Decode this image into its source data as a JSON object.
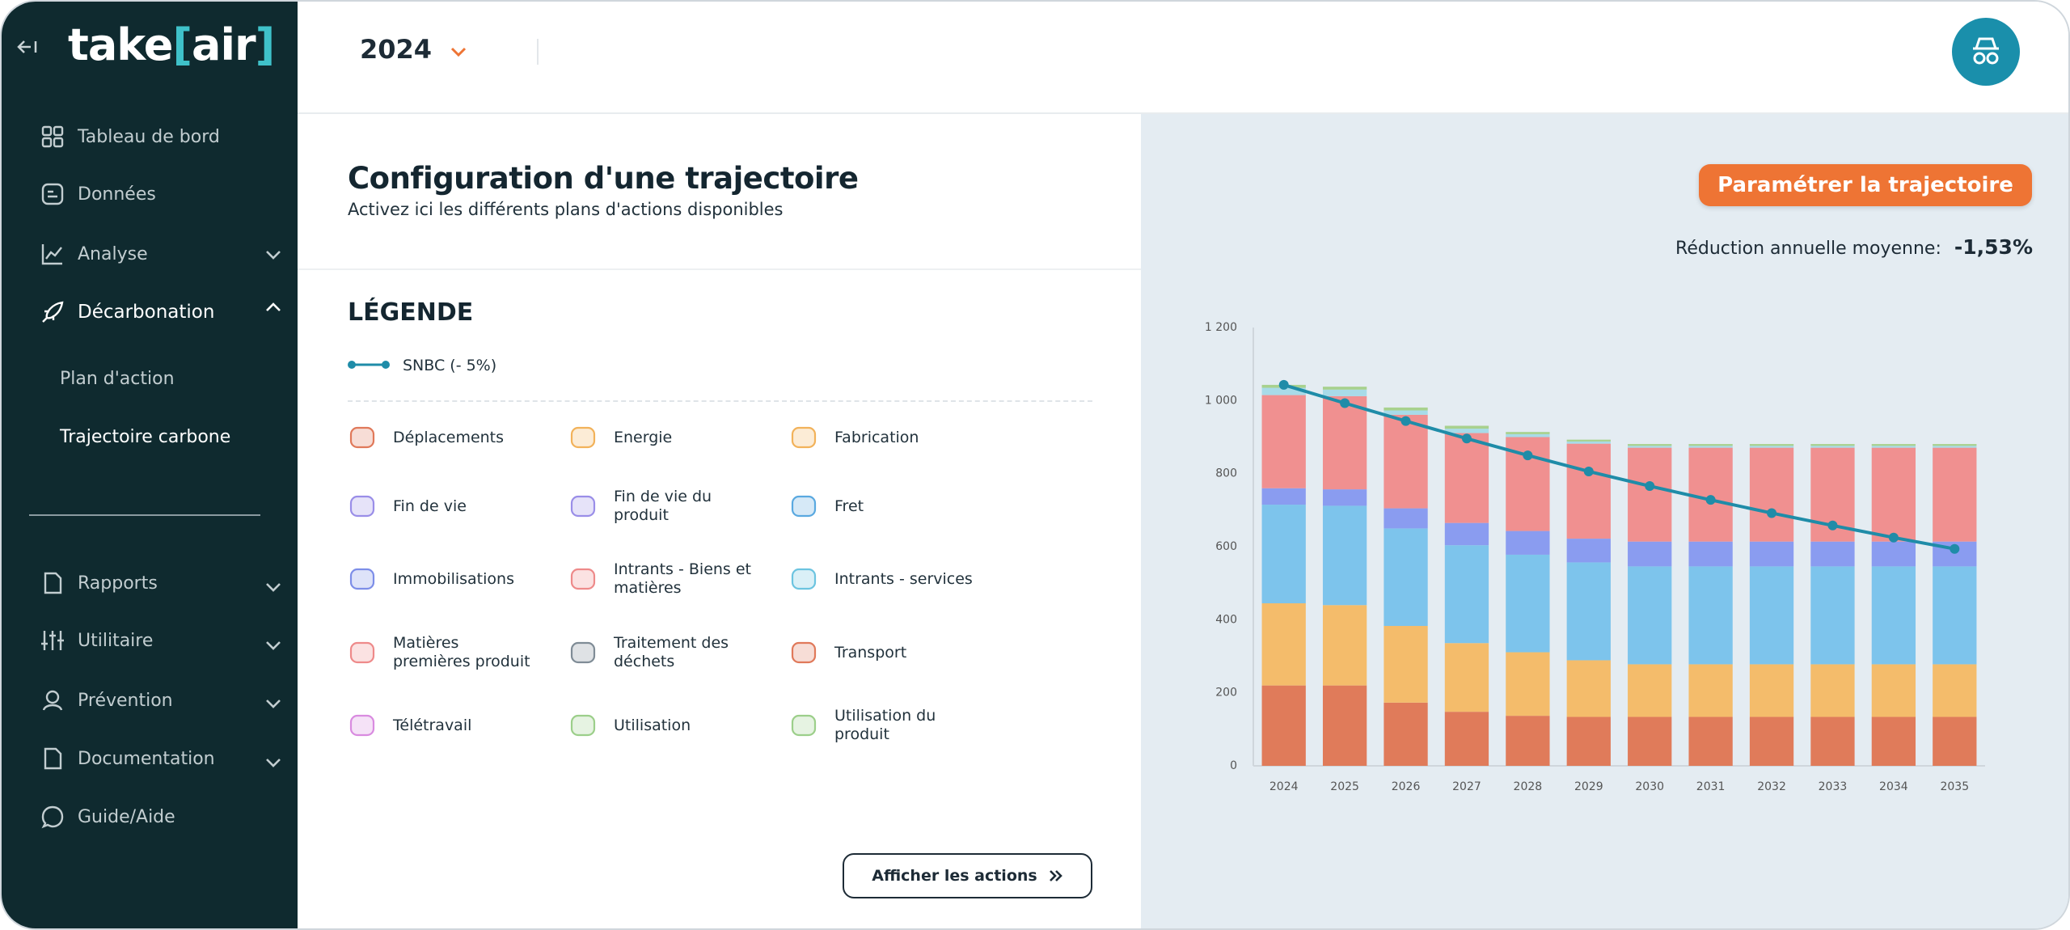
{
  "logo": [
    "take",
    "[",
    "air",
    "]"
  ],
  "nav": {
    "items": [
      "Tableau de bord",
      "Données",
      "Analyse",
      "Décarbonation"
    ],
    "sub_items": [
      "Plan d'action",
      "Trajectoire carbone"
    ],
    "lower_items": [
      "Rapports",
      "Utilitaire",
      "Prévention",
      "Documentation",
      "Guide/Aide"
    ]
  },
  "header": {
    "year": "2024"
  },
  "config": {
    "title": "Configuration d'une trajectoire",
    "subtitle": "Activez ici les différents plans d'actions disponibles",
    "legend_title": "LÉGENDE",
    "legend": [
      {
        "label": "Déplacements",
        "color": "#e0795a"
      },
      {
        "label": "Energie",
        "color": "#f2b25a"
      },
      {
        "label": "Fabrication",
        "color": "#f2b25a"
      },
      {
        "label": "Fin de vie",
        "color": "#9a8ee8"
      },
      {
        "label": "Fin de vie du produit",
        "color": "#9a8ee8"
      },
      {
        "label": "Fret",
        "color": "#5aa9e0"
      },
      {
        "label": "Immobilisations",
        "color": "#7d8ee8"
      },
      {
        "label": "Intrants - Biens et matières",
        "color": "#ee8a8a"
      },
      {
        "label": "Intrants - services",
        "color": "#6cc4e0"
      },
      {
        "label": "Matières premières produit",
        "color": "#ee8a8a"
      },
      {
        "label": "Traitement des déchets",
        "color": "#7f8c96"
      },
      {
        "label": "Transport",
        "color": "#e0795a"
      },
      {
        "label": "Télétravail",
        "color": "#d98be0"
      },
      {
        "label": "Utilisation",
        "color": "#9ccf8a"
      },
      {
        "label": "Utilisation du produit",
        "color": "#9ccf8a"
      }
    ],
    "button": "Afficher les actions"
  },
  "trajectory": {
    "button": "Paramétrer la trajectoire",
    "reduction_label": "Réduction annuelle moyenne:",
    "reduction_value": "-1,53%"
  },
  "chart_data": {
    "type": "bar",
    "stacked": true,
    "grid": false,
    "categories": [
      "2024",
      "2025",
      "2026",
      "2027",
      "2028",
      "2029",
      "2030",
      "2031",
      "2032",
      "2033",
      "2034",
      "2035"
    ],
    "ylim": [
      0,
      1200
    ],
    "yticks": [
      0,
      200,
      400,
      600,
      800,
      {
        "value": 1000,
        "label": "1 000"
      },
      {
        "value": 1200,
        "label": "1 200"
      }
    ],
    "series": [
      {
        "color": "#e07b5a",
        "values": [
          220,
          220,
          173,
          148,
          137,
          134,
          134,
          134,
          134,
          134,
          134,
          134
        ]
      },
      {
        "color": "#f4bc6b",
        "values": [
          225,
          220,
          210,
          188,
          174,
          155,
          144,
          144,
          144,
          144,
          144,
          144
        ]
      },
      {
        "color": "#7dc4ec",
        "values": [
          270,
          272,
          267,
          268,
          267,
          268,
          268,
          268,
          268,
          268,
          268,
          268
        ]
      },
      {
        "color": "#8a9cf0",
        "values": [
          45,
          45,
          55,
          61,
          65,
          65,
          68,
          68,
          68,
          68,
          68,
          68
        ]
      },
      {
        "color": "#f09090",
        "values": [
          255,
          255,
          256,
          246,
          257,
          260,
          257,
          257,
          257,
          257,
          257,
          257
        ]
      },
      {
        "color": "#a8dbe8",
        "values": [
          20,
          18,
          12,
          12,
          8,
          6,
          5,
          5,
          5,
          5,
          5,
          5
        ]
      },
      {
        "color": "#a8d18e",
        "values": [
          8,
          8,
          8,
          8,
          6,
          5,
          5,
          5,
          5,
          5,
          5,
          5
        ]
      },
      {
        "type": "line",
        "name": "SNBC (- 5%)",
        "color": "#1f8ca8",
        "values": [
          1043,
          993,
          944,
          896,
          850,
          806,
          766,
          728,
          692,
          658,
          625,
          594
        ]
      }
    ]
  }
}
